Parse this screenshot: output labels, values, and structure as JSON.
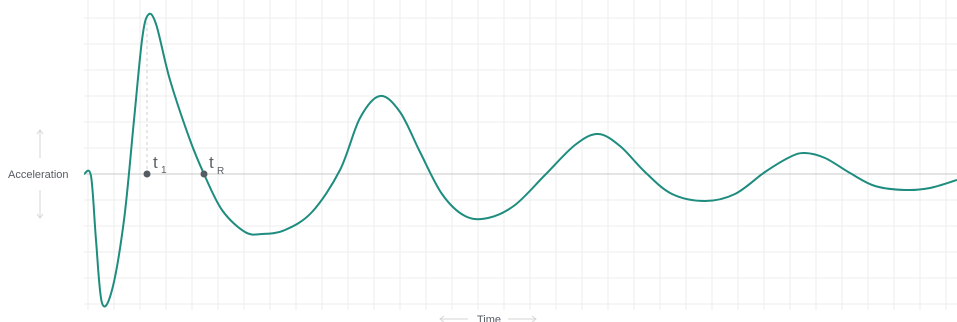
{
  "chart_data": {
    "type": "line",
    "y_axis_label": "Acceleration",
    "x_axis_label": "Time",
    "wave_color": "#1e8c7e",
    "grid": true,
    "markers": [
      {
        "name": "t1",
        "symbol": "t",
        "subscript": "1"
      },
      {
        "name": "tR",
        "symbol": "t",
        "subscript": "R"
      }
    ]
  }
}
